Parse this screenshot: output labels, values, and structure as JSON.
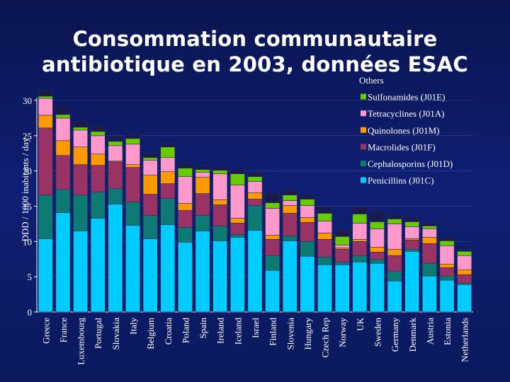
{
  "chart_data": {
    "type": "bar",
    "stacked": true,
    "title_line1": "Consommation communautaire",
    "title_line2": "antibiotique en  2003, données ESAC",
    "ylabel": "DDD / 1000 inabitants / day",
    "xlabel": "",
    "ylim": [
      0,
      30
    ],
    "yticks": [
      0,
      5,
      10,
      15,
      20,
      25,
      30
    ],
    "categories": [
      "Greece",
      "France",
      "Luxembourg",
      "Portugal",
      "Slovakia",
      "Italy",
      "Belgium",
      "Croatia",
      "Poland",
      "Spain",
      "Ireland",
      "Iceland",
      "Israel",
      "Finland",
      "Slovenia",
      "Hungary",
      "Czech Rep",
      "Norway",
      "UK",
      "Sweden",
      "Germany",
      "Denmark",
      "Austria",
      "Estonia",
      "Netherlands"
    ],
    "series": [
      {
        "name": "Penicillins (J01C)",
        "color": "#00ccff",
        "values": [
          10.4,
          14.1,
          11.5,
          13.3,
          15.3,
          12.3,
          10.4,
          12.4,
          9.9,
          11.5,
          10.1,
          10.6,
          11.6,
          5.9,
          10.1,
          7.9,
          6.7,
          6.7,
          7.1,
          6.9,
          4.4,
          8.6,
          5.1,
          4.5,
          3.9
        ]
      },
      {
        "name": "Cephalosporins (J01D)",
        "color": "#0d7a73",
        "values": [
          6.2,
          3.3,
          5.1,
          3.7,
          2.2,
          3.3,
          3.3,
          3.7,
          2.1,
          2.2,
          2.1,
          0.4,
          3.5,
          2.1,
          0.7,
          2.1,
          1.1,
          0.4,
          0.9,
          0.6,
          1.4,
          0.3,
          1.8,
          0.6,
          0.2
        ]
      },
      {
        "name": "Macrolides (J01F)",
        "color": "#993366",
        "values": [
          9.5,
          4.8,
          4.3,
          3.8,
          3.8,
          4.9,
          3.0,
          2.1,
          2.4,
          3.1,
          3.0,
          1.6,
          0.9,
          2.3,
          3.2,
          2.7,
          2.5,
          1.8,
          2.0,
          1.0,
          2.2,
          1.3,
          2.8,
          1.2,
          1.2
        ]
      },
      {
        "name": "Quinolones (J01M)",
        "color": "#ff9900",
        "values": [
          1.8,
          2.1,
          2.5,
          1.6,
          0.1,
          0.4,
          2.7,
          1.7,
          1.0,
          2.3,
          0.7,
          0.7,
          0.9,
          0.6,
          1.1,
          0.7,
          0.9,
          0.2,
          0.3,
          0.7,
          0.9,
          0.2,
          0.9,
          0.5,
          0.7
        ]
      },
      {
        "name": "Tetracyclines  (J01A)",
        "color": "#ff99cc",
        "values": [
          2.4,
          3.2,
          2.4,
          2.6,
          2.2,
          2.9,
          2.1,
          2.0,
          3.8,
          0.7,
          3.7,
          4.7,
          1.6,
          3.8,
          0.7,
          1.7,
          1.7,
          0.4,
          2.3,
          2.6,
          3.6,
          1.7,
          1.2,
          2.6,
          2.0
        ]
      },
      {
        "name": "Sulfonamides (J01E)",
        "color": "#66cc00",
        "values": [
          0.3,
          0.5,
          0.4,
          0.6,
          0.6,
          0.8,
          0.4,
          1.5,
          1.2,
          0.4,
          0.5,
          1.6,
          0.7,
          0.8,
          0.8,
          0.9,
          1.1,
          1.2,
          1.3,
          1.0,
          0.7,
          0.7,
          0.4,
          0.7,
          0.6
        ]
      },
      {
        "name": "Others",
        "color": "#1a1a4d",
        "values": [
          0.8,
          1.2,
          0.8,
          0.7,
          0.6,
          0.5,
          0.5,
          0.4,
          0.7,
          0.5,
          0.5,
          0.6,
          0.6,
          1.3,
          0.6,
          0.6,
          0.9,
          1.0,
          1.0,
          1.5,
          0.6,
          0.7,
          0.4,
          0.4,
          0.2
        ]
      }
    ],
    "legend_order": [
      "Others",
      "Sulfonamides (J01E)",
      "Tetracyclines  (J01A)",
      "Quinolones (J01M)",
      "Macrolides (J01F)",
      "Cephalosporins (J01D)",
      "Penicillins (J01C)"
    ],
    "legend_position": "top-right",
    "grid": true
  }
}
